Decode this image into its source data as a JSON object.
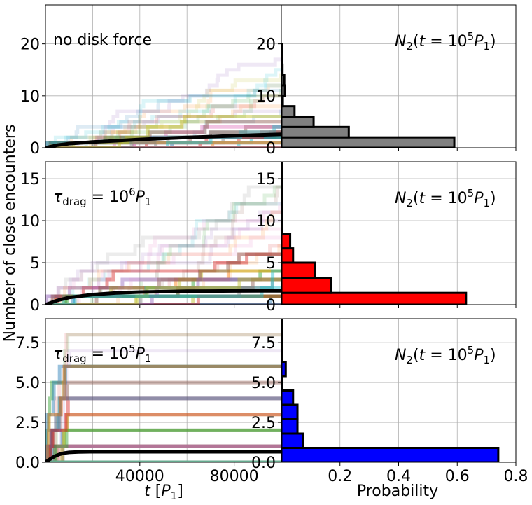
{
  "figure": {
    "ylabel": "Number of close encounters",
    "xlabel_left": "t [P_1]",
    "xlabel_right": "Probability"
  },
  "chart_data": [
    {
      "type": "line",
      "panel": "top-left",
      "annotation": "no disk force",
      "xlim": [
        0,
        100000
      ],
      "ylim": [
        0,
        27.5
      ],
      "yticks": [
        0,
        10,
        20
      ],
      "xticks": [
        40000,
        80000
      ],
      "grid": true,
      "mean_curve": {
        "x": [
          0,
          5000,
          10000,
          20000,
          30000,
          40000,
          50000,
          60000,
          70000,
          80000,
          90000,
          100000
        ],
        "y": [
          0,
          0.5,
          0.8,
          1.1,
          1.35,
          1.6,
          1.8,
          2.0,
          2.15,
          2.3,
          2.45,
          2.6
        ]
      },
      "trajectories": {
        "count": 40,
        "max": 17,
        "rate": 0.00017,
        "colors": [
          "#1f77b4",
          "#ff7f0e",
          "#2ca02c",
          "#d62728",
          "#9467bd",
          "#8c564b",
          "#e377c2",
          "#7f7f7f",
          "#bcbd22",
          "#17becf"
        ]
      }
    },
    {
      "type": "bar",
      "orientation": "horizontal",
      "panel": "top-right",
      "annotation": "N_2(t = 10^5 P_1)",
      "color": "#808080",
      "xlim": [
        0,
        0.8
      ],
      "ylim": [
        0,
        27.5
      ],
      "yticks": [
        0,
        10,
        20
      ],
      "xticks": [],
      "grid": true,
      "bins": [
        {
          "y0": 0,
          "y1": 2,
          "p": 0.59
        },
        {
          "y0": 2,
          "y1": 4,
          "p": 0.23
        },
        {
          "y0": 4,
          "y1": 6,
          "p": 0.11
        },
        {
          "y0": 6,
          "y1": 8,
          "p": 0.045
        },
        {
          "y0": 8,
          "y1": 10,
          "p": 0.005
        },
        {
          "y0": 10,
          "y1": 12,
          "p": 0.012
        },
        {
          "y0": 12,
          "y1": 14,
          "p": 0.01
        },
        {
          "y0": 14,
          "y1": 16,
          "p": 0.004
        },
        {
          "y0": 16,
          "y1": 18,
          "p": 0.003
        },
        {
          "y0": 18,
          "y1": 20,
          "p": 0.002
        }
      ]
    },
    {
      "type": "line",
      "panel": "middle-left",
      "annotation": "τ_drag = 10^6 P_1",
      "xlim": [
        0,
        100000
      ],
      "ylim": [
        0,
        17
      ],
      "yticks": [
        0,
        5,
        10,
        15
      ],
      "xticks": [
        40000,
        80000
      ],
      "grid": true,
      "mean_curve": {
        "x": [
          0,
          5000,
          10000,
          20000,
          30000,
          40000,
          50000,
          60000,
          70000,
          80000,
          90000,
          100000
        ],
        "y": [
          0,
          0.5,
          0.85,
          1.2,
          1.4,
          1.5,
          1.55,
          1.6,
          1.62,
          1.63,
          1.64,
          1.65
        ]
      },
      "trajectories": {
        "count": 40,
        "max": 14,
        "rate": 9e-05,
        "colors": [
          "#1f77b4",
          "#ff7f0e",
          "#2ca02c",
          "#d62728",
          "#9467bd",
          "#8c564b",
          "#e377c2",
          "#7f7f7f",
          "#bcbd22",
          "#17becf"
        ]
      }
    },
    {
      "type": "bar",
      "orientation": "horizontal",
      "panel": "middle-right",
      "annotation": "N_2(t = 10^5 P_1)",
      "color": "#ff0000",
      "xlim": [
        0,
        0.8
      ],
      "ylim": [
        0,
        17
      ],
      "yticks": [
        0,
        5,
        10,
        15
      ],
      "xticks": [],
      "grid": true,
      "bins": [
        {
          "y0": 0,
          "y1": 1.4,
          "p": 0.63
        },
        {
          "y0": 1.4,
          "y1": 3.2,
          "p": 0.17
        },
        {
          "y0": 3.2,
          "y1": 5,
          "p": 0.115
        },
        {
          "y0": 5,
          "y1": 6.7,
          "p": 0.04
        },
        {
          "y0": 6.7,
          "y1": 8.4,
          "p": 0.03
        },
        {
          "y0": 8.4,
          "y1": 10.2,
          "p": 0.003
        },
        {
          "y0": 10.2,
          "y1": 12,
          "p": 0.003
        },
        {
          "y0": 12,
          "y1": 13.8,
          "p": 0.003
        },
        {
          "y0": 13.8,
          "y1": 15.6,
          "p": 0.003
        },
        {
          "y0": 15.6,
          "y1": 17,
          "p": 0.003
        }
      ]
    },
    {
      "type": "line",
      "panel": "bottom-left",
      "annotation": "τ_drag = 10^5 P_1",
      "xlim": [
        0,
        100000
      ],
      "ylim": [
        0,
        9
      ],
      "yticks": [
        0.0,
        2.5,
        5.0,
        7.5
      ],
      "xticks": [
        40000,
        80000
      ],
      "xticklabels": [
        "40000",
        "80000"
      ],
      "grid": true,
      "mean_curve": {
        "x": [
          0,
          2000,
          4000,
          6000,
          8000,
          10000,
          14000,
          20000,
          40000,
          60000,
          80000,
          100000
        ],
        "y": [
          0,
          0.2,
          0.38,
          0.5,
          0.58,
          0.62,
          0.65,
          0.66,
          0.66,
          0.66,
          0.66,
          0.66
        ]
      },
      "trajectories": {
        "count": 40,
        "max": 8,
        "rate": 0.0003,
        "tmax": 10000,
        "colors": [
          "#1f77b4",
          "#ff7f0e",
          "#2ca02c",
          "#d62728",
          "#9467bd",
          "#8c564b",
          "#e377c2",
          "#7f7f7f",
          "#bcbd22",
          "#17becf"
        ]
      }
    },
    {
      "type": "bar",
      "orientation": "horizontal",
      "panel": "bottom-right",
      "annotation": "N_2(t = 10^5 P_1)",
      "color": "#0000ff",
      "xlim": [
        0,
        0.8
      ],
      "ylim": [
        0,
        9
      ],
      "yticks": [
        0.0,
        2.5,
        5.0,
        7.5
      ],
      "xticks": [
        0.2,
        0.4,
        0.6,
        0.8
      ],
      "xticklabels": [
        "0.2",
        "0.4",
        "0.6",
        "0.8"
      ],
      "grid": true,
      "bins": [
        {
          "y0": 0,
          "y1": 0.9,
          "p": 0.74
        },
        {
          "y0": 0.9,
          "y1": 1.8,
          "p": 0.075
        },
        {
          "y0": 1.8,
          "y1": 2.7,
          "p": 0.055
        },
        {
          "y0": 2.7,
          "y1": 3.6,
          "p": 0.055
        },
        {
          "y0": 3.6,
          "y1": 4.5,
          "p": 0.04
        },
        {
          "y0": 4.5,
          "y1": 5.4,
          "p": 0.003
        },
        {
          "y0": 5.4,
          "y1": 6.3,
          "p": 0.015
        },
        {
          "y0": 6.3,
          "y1": 7.2,
          "p": 0.003
        },
        {
          "y0": 7.2,
          "y1": 8.1,
          "p": 0.003
        },
        {
          "y0": 8.1,
          "y1": 9,
          "p": 0.003
        }
      ]
    }
  ]
}
